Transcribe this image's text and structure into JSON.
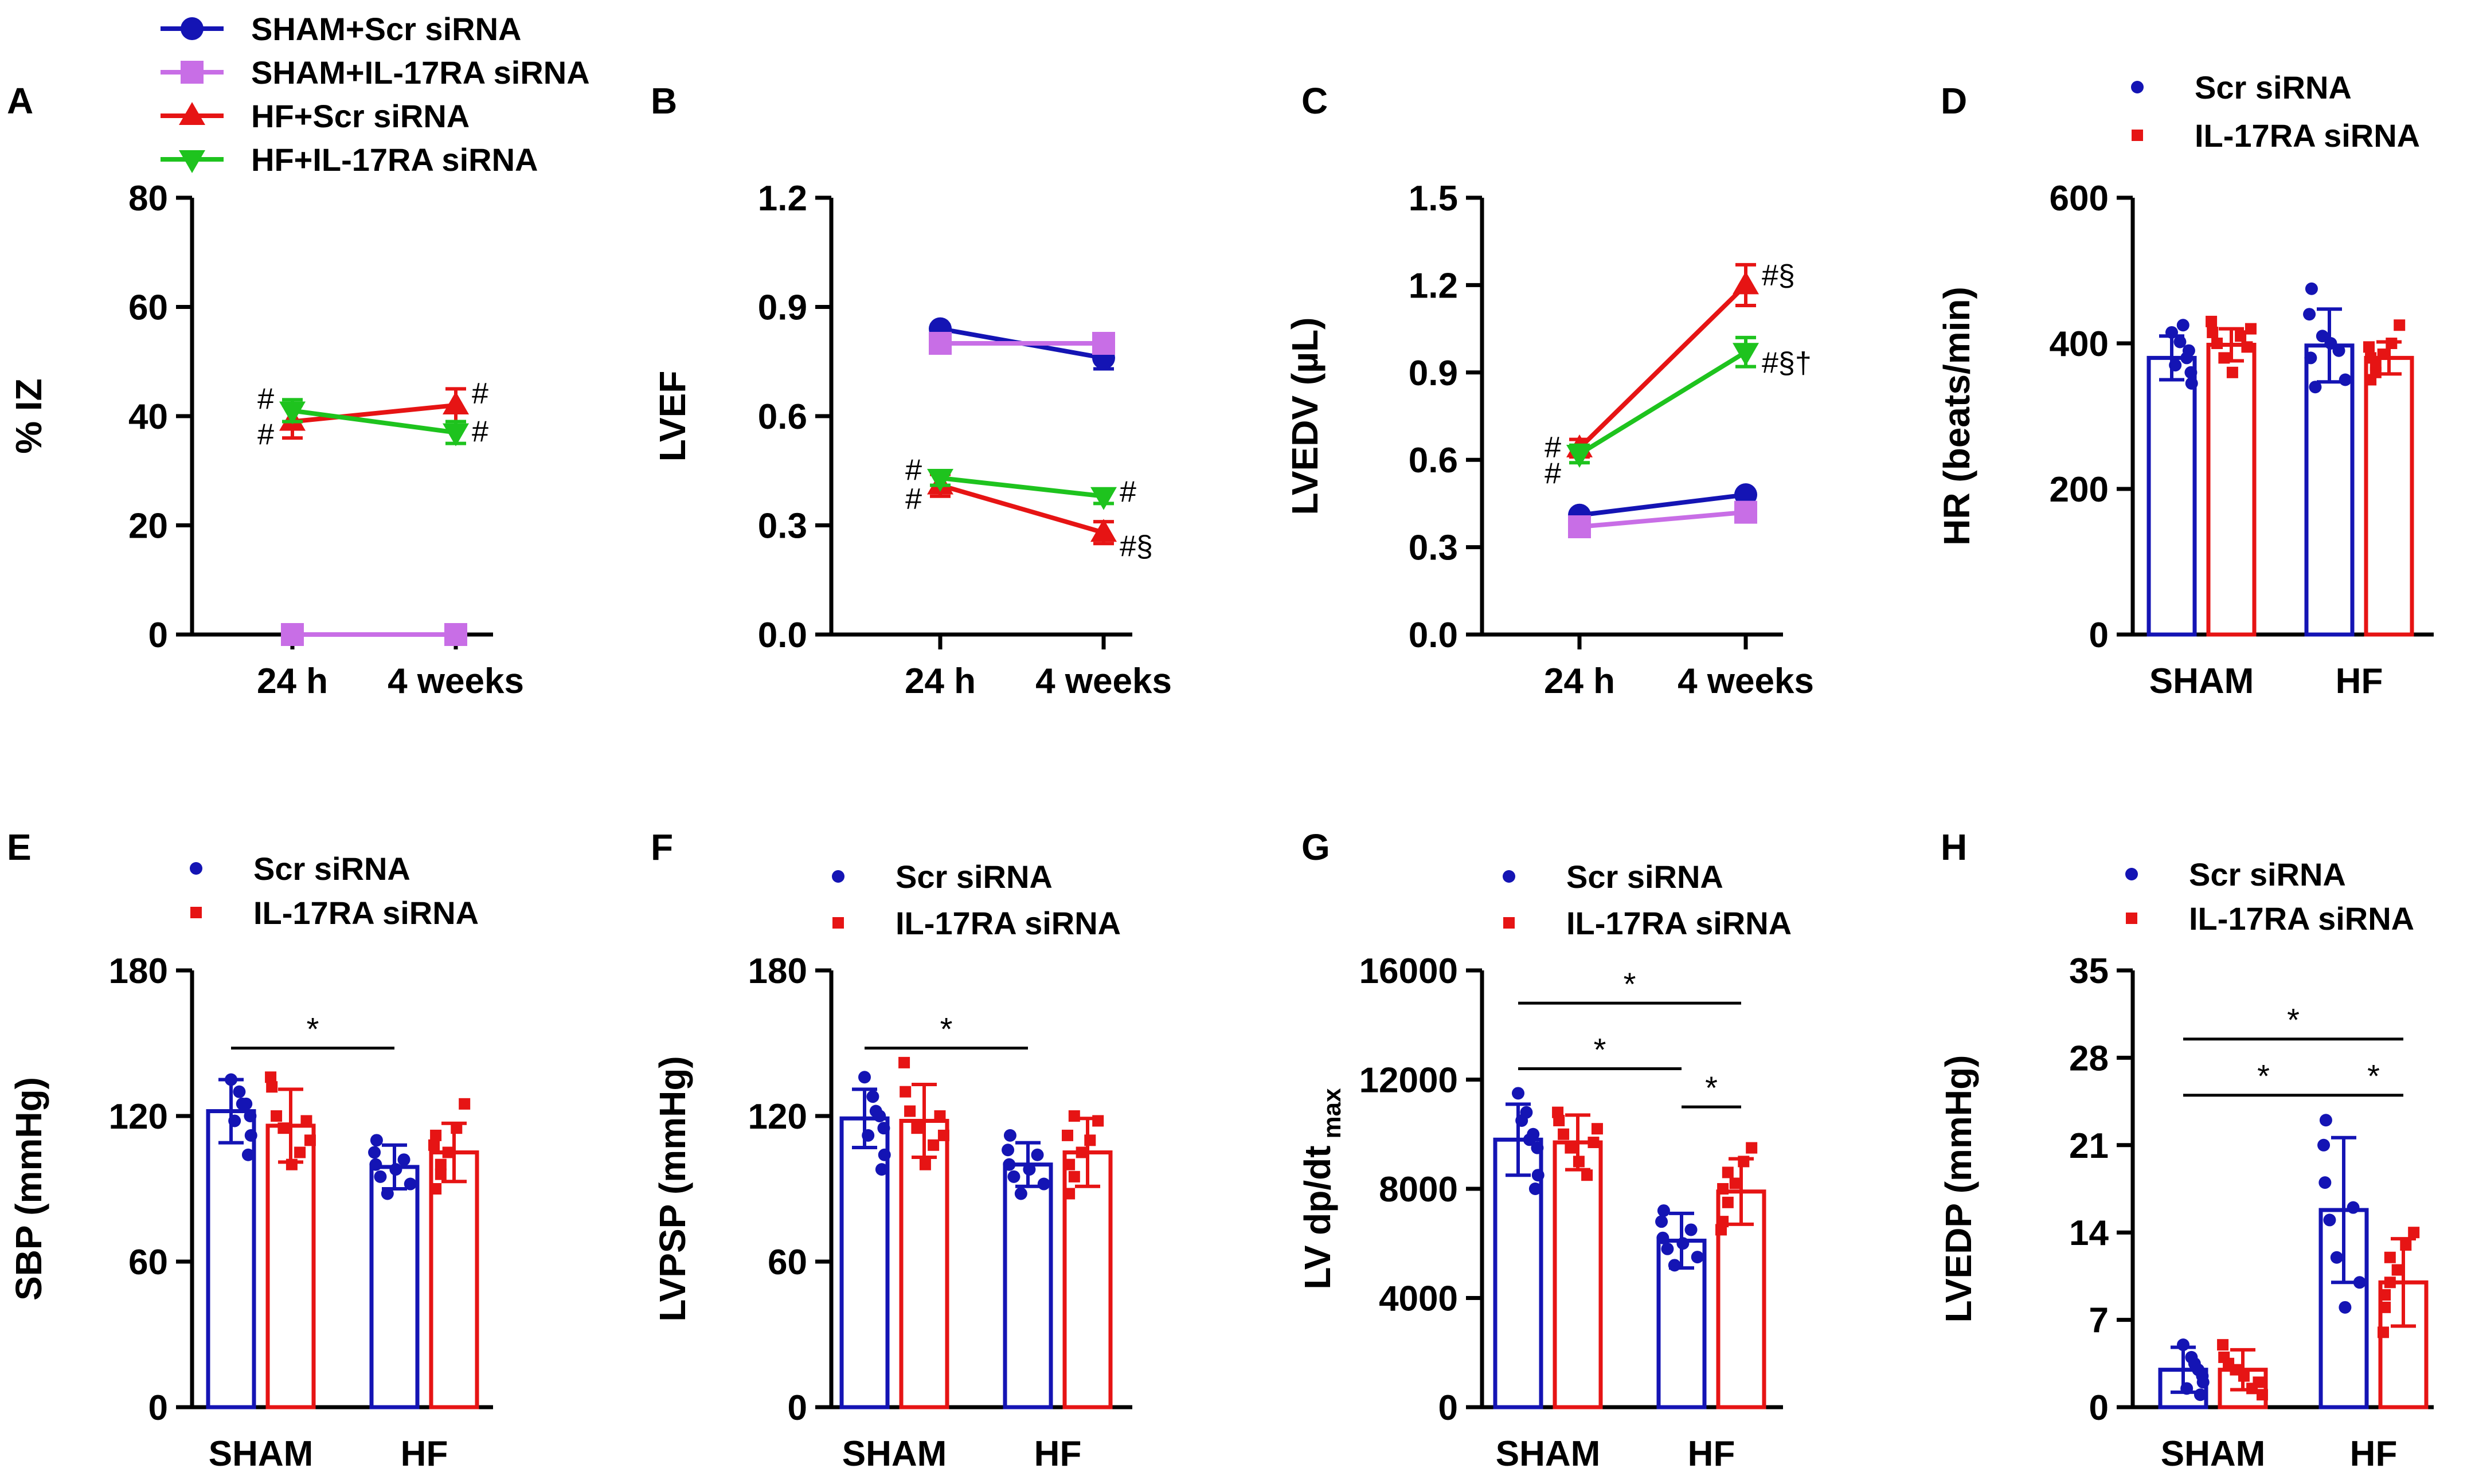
{
  "colors": {
    "sham_scr": "#1414b4",
    "sham_il": "#c86ee6",
    "hf_scr": "#e61414",
    "hf_il": "#1ec31e",
    "bar_scr": "#1414b4",
    "bar_il": "#e61414",
    "axis": "#000000"
  },
  "legend_top": {
    "items": [
      {
        "label": "SHAM+Scr siRNA",
        "marker": "circle",
        "color_key": "sham_scr"
      },
      {
        "label": "SHAM+IL-17RA siRNA",
        "marker": "square",
        "color_key": "sham_il"
      },
      {
        "label": "HF+Scr siRNA",
        "marker": "triangle-up",
        "color_key": "hf_scr"
      },
      {
        "label": "HF+IL-17RA siRNA",
        "marker": "triangle-down",
        "color_key": "hf_il"
      }
    ]
  },
  "bar_legend": {
    "scr": "Scr siRNA",
    "il": "IL-17RA siRNA"
  },
  "chart_data": [
    {
      "panel": "A",
      "type": "line",
      "ylabel": "% IZ",
      "ylim": [
        0,
        80
      ],
      "yticks": [
        "0",
        "20",
        "40",
        "60",
        "80"
      ],
      "categories": [
        "24 h",
        "4 weeks"
      ],
      "series": [
        {
          "name": "SHAM+Scr siRNA",
          "color_key": "sham_scr",
          "marker": "circle",
          "values": [
            0,
            0
          ],
          "err": [
            0,
            0
          ]
        },
        {
          "name": "SHAM+IL-17RA siRNA",
          "color_key": "sham_il",
          "marker": "square",
          "values": [
            0,
            0
          ],
          "err": [
            0,
            0
          ]
        },
        {
          "name": "HF+Scr siRNA",
          "color_key": "hf_scr",
          "marker": "triangle-up",
          "values": [
            39,
            42
          ],
          "err": [
            3,
            3
          ]
        },
        {
          "name": "HF+IL-17RA siRNA",
          "color_key": "hf_il",
          "marker": "triangle-down",
          "values": [
            41,
            37
          ],
          "err": [
            2,
            2
          ]
        }
      ],
      "annotations": [
        {
          "text": "#",
          "x": 0,
          "y": 43,
          "side": "left"
        },
        {
          "text": "#",
          "x": 0,
          "y": 36.5,
          "side": "left"
        },
        {
          "text": "#",
          "x": 1,
          "y": 44,
          "side": "right"
        },
        {
          "text": "#",
          "x": 1,
          "y": 37,
          "side": "right"
        }
      ]
    },
    {
      "panel": "B",
      "type": "line",
      "ylabel": "LVEF",
      "ylim": [
        0,
        1.2
      ],
      "yticks": [
        "0.0",
        "0.3",
        "0.6",
        "0.9",
        "1.2"
      ],
      "categories": [
        "24 h",
        "4 weeks"
      ],
      "series": [
        {
          "name": "SHAM+Scr siRNA",
          "color_key": "sham_scr",
          "marker": "circle",
          "values": [
            0.84,
            0.76
          ],
          "err": [
            0.01,
            0.03
          ]
        },
        {
          "name": "SHAM+IL-17RA siRNA",
          "color_key": "sham_il",
          "marker": "square",
          "values": [
            0.8,
            0.8
          ],
          "err": [
            0.01,
            0.01
          ]
        },
        {
          "name": "HF+Scr siRNA",
          "color_key": "hf_scr",
          "marker": "triangle-up",
          "values": [
            0.41,
            0.28
          ],
          "err": [
            0.03,
            0.03
          ]
        },
        {
          "name": "HF+IL-17RA siRNA",
          "color_key": "hf_il",
          "marker": "triangle-down",
          "values": [
            0.43,
            0.38
          ],
          "err": [
            0.02,
            0.02
          ]
        }
      ],
      "annotations": [
        {
          "text": "#",
          "x": 0,
          "y": 0.45,
          "side": "left"
        },
        {
          "text": "#",
          "x": 0,
          "y": 0.37,
          "side": "left"
        },
        {
          "text": "#",
          "x": 1,
          "y": 0.39,
          "side": "right"
        },
        {
          "text": "#§",
          "x": 1,
          "y": 0.24,
          "side": "right"
        }
      ]
    },
    {
      "panel": "C",
      "type": "line",
      "ylabel": "LVEDV (µL)",
      "ylim": [
        0,
        1.5
      ],
      "yticks": [
        "0.0",
        "0.3",
        "0.6",
        "0.9",
        "1.2",
        "1.5"
      ],
      "categories": [
        "24 h",
        "4 weeks"
      ],
      "series": [
        {
          "name": "SHAM+Scr siRNA",
          "color_key": "sham_scr",
          "marker": "circle",
          "values": [
            0.41,
            0.48
          ],
          "err": [
            0.01,
            0.01
          ]
        },
        {
          "name": "SHAM+IL-17RA siRNA",
          "color_key": "sham_il",
          "marker": "square",
          "values": [
            0.37,
            0.42
          ],
          "err": [
            0.01,
            0.01
          ]
        },
        {
          "name": "HF+Scr siRNA",
          "color_key": "hf_scr",
          "marker": "triangle-up",
          "values": [
            0.64,
            1.2
          ],
          "err": [
            0.03,
            0.07
          ]
        },
        {
          "name": "HF+IL-17RA siRNA",
          "color_key": "hf_il",
          "marker": "triangle-down",
          "values": [
            0.62,
            0.97
          ],
          "err": [
            0.03,
            0.05
          ]
        }
      ],
      "annotations": [
        {
          "text": "#",
          "x": 0,
          "y": 0.64,
          "side": "left"
        },
        {
          "text": "#",
          "x": 0,
          "y": 0.55,
          "side": "left"
        },
        {
          "text": "#§",
          "x": 1,
          "y": 1.23,
          "side": "right"
        },
        {
          "text": "#§†",
          "x": 1,
          "y": 0.93,
          "side": "right"
        }
      ]
    },
    {
      "panel": "D",
      "type": "bar",
      "ylabel": "HR (beats/min)",
      "ylim": [
        0,
        600
      ],
      "yticks": [
        "0",
        "200",
        "400",
        "600"
      ],
      "categories": [
        "SHAM",
        "HF"
      ],
      "series": [
        {
          "name": "Scr siRNA",
          "values": [
            380,
            397
          ],
          "err": [
            30,
            50
          ],
          "points": [
            [
              415,
              402,
              380,
              360,
              345,
              390,
              425,
              370
            ],
            [
              475,
              440,
              380,
              340,
              410,
              400,
              390,
              350
            ]
          ]
        },
        {
          "name": "IL-17RA siRNA",
          "values": [
            398,
            380
          ],
          "err": [
            22,
            22
          ],
          "points": [
            [
              430,
              415,
              400,
              380,
              360,
              410,
              395,
              420
            ],
            [
              425,
              400,
              385,
              360,
              350,
              395,
              380,
              370
            ]
          ]
        }
      ],
      "significance": []
    },
    {
      "panel": "E",
      "type": "bar",
      "ylabel": "SBP (mmHg)",
      "ylim": [
        0,
        180
      ],
      "yticks": [
        "0",
        "60",
        "120",
        "180"
      ],
      "categories": [
        "SHAM",
        "HF"
      ],
      "series": [
        {
          "name": "Scr siRNA",
          "values": [
            122,
            99
          ],
          "err": [
            13,
            9
          ],
          "points": [
            [
              135,
              130,
              125,
              120,
              112,
              104,
              125,
              118
            ],
            [
              110,
              105,
              100,
              95,
              88,
              98,
              102,
              92
            ]
          ]
        },
        {
          "name": "IL-17RA siRNA",
          "values": [
            116,
            105
          ],
          "err": [
            15,
            12
          ],
          "points": [
            [
              136,
              132,
              120,
              115,
              100,
              105,
              118,
              110
            ],
            [
              125,
              115,
              105,
              100,
              90,
              108,
              112,
              96
            ]
          ]
        }
      ],
      "significance": [
        {
          "from": [
            0,
            0
          ],
          "to": [
            1,
            0
          ],
          "level": 148,
          "label": "*"
        }
      ]
    },
    {
      "panel": "F",
      "type": "bar",
      "ylabel": "LVPSP (mmHg)",
      "ylim": [
        0,
        180
      ],
      "yticks": [
        "0",
        "60",
        "120",
        "180"
      ],
      "categories": [
        "SHAM",
        "HF"
      ],
      "series": [
        {
          "name": "Scr siRNA",
          "values": [
            119,
            100
          ],
          "err": [
            12,
            9
          ],
          "points": [
            [
              136,
              128,
              120,
              115,
              104,
              98,
              122,
              112
            ],
            [
              112,
              106,
              100,
              95,
              88,
              98,
              104,
              92
            ]
          ]
        },
        {
          "name": "IL-17RA siRNA",
          "values": [
            118,
            105
          ],
          "err": [
            15,
            14
          ],
          "points": [
            [
              142,
              130,
              122,
              115,
              100,
              108,
              120,
              112
            ],
            [
              118,
              110,
              105,
              95,
              88,
              112,
              100,
              120
            ]
          ]
        }
      ],
      "significance": [
        {
          "from": [
            0,
            0
          ],
          "to": [
            1,
            0
          ],
          "level": 148,
          "label": "*"
        }
      ]
    },
    {
      "panel": "G",
      "type": "bar",
      "ylabel": "LV dp/dt max",
      "ylim": [
        0,
        16000
      ],
      "yticks": [
        "0",
        "4000",
        "8000",
        "12000",
        "16000"
      ],
      "categories": [
        "SHAM",
        "HF"
      ],
      "series": [
        {
          "name": "Scr siRNA",
          "values": [
            9800,
            6100
          ],
          "err": [
            1300,
            1000
          ],
          "points": [
            [
              11500,
              10800,
              10000,
              9500,
              8500,
              8000,
              9800,
              10500
            ],
            [
              7200,
              6800,
              6200,
              5800,
              5200,
              6000,
              6500,
              5500
            ]
          ]
        },
        {
          "name": "IL-17RA siRNA",
          "values": [
            9700,
            7900
          ],
          "err": [
            1000,
            1200
          ],
          "points": [
            [
              10800,
              10500,
              10000,
              9500,
              9000,
              8500,
              9700,
              10200
            ],
            [
              9500,
              9000,
              8200,
              7500,
              6800,
              6500,
              8000,
              8600
            ]
          ]
        }
      ],
      "significance": [
        {
          "from": [
            0,
            0
          ],
          "to": [
            1,
            1
          ],
          "level": 14800,
          "label": "*"
        },
        {
          "from": [
            0,
            0
          ],
          "to": [
            1,
            0
          ],
          "level": 12400,
          "label": "*"
        },
        {
          "from": [
            1,
            0
          ],
          "to": [
            1,
            1
          ],
          "level": 11000,
          "label": "*"
        }
      ]
    },
    {
      "panel": "H",
      "type": "bar",
      "ylabel": "LVEDP (mmHg)",
      "ylim": [
        0,
        35
      ],
      "yticks": [
        "0",
        "7",
        "14",
        "21",
        "28",
        "35"
      ],
      "categories": [
        "SHAM",
        "HF"
      ],
      "series": [
        {
          "name": "Scr siRNA",
          "values": [
            3,
            15.8
          ],
          "err": [
            1.8,
            5.8
          ],
          "points": [
            [
              5,
              4,
              3,
              2.5,
              2,
              1,
              3.5,
              1.5
            ],
            [
              23,
              21,
              18,
              15,
              12,
              8,
              16,
              10
            ]
          ]
        },
        {
          "name": "IL-17RA siRNA",
          "values": [
            3,
            10
          ],
          "err": [
            1.6,
            3.5
          ],
          "points": [
            [
              5,
              4,
              3.5,
              3,
              2.5,
              1.5,
              2,
              1
            ],
            [
              14,
              13,
              11,
              10,
              8,
              6,
              9,
              12
            ]
          ]
        }
      ],
      "significance": [
        {
          "from": [
            0,
            0
          ],
          "to": [
            1,
            1
          ],
          "level": 29.5,
          "label": "*"
        },
        {
          "from": [
            0,
            0
          ],
          "to": [
            1,
            0
          ],
          "level": 25,
          "label": "*"
        },
        {
          "from": [
            1,
            0
          ],
          "to": [
            1,
            1
          ],
          "level": 25,
          "label": "*"
        }
      ]
    }
  ]
}
